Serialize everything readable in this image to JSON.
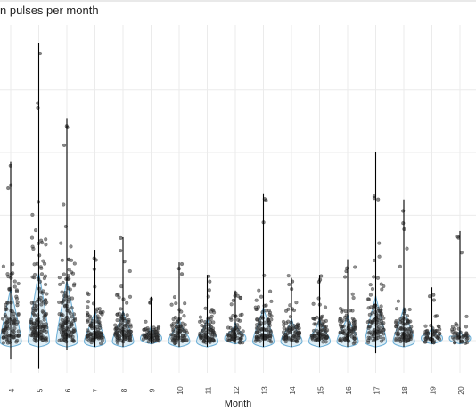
{
  "chart_data": {
    "type": "scatter",
    "subtype": "jittered strip plot with violin outlines and range lines",
    "title": "n pulses per month",
    "xlabel": "Month",
    "ylabel": "",
    "categories": [
      "4",
      "5",
      "6",
      "7",
      "8",
      "9",
      "10",
      "11",
      "12",
      "13",
      "14",
      "15",
      "16",
      "17",
      "18",
      "19",
      "20"
    ],
    "ylim": [
      0,
      100
    ],
    "grid": true,
    "point_color": "#333333",
    "violin_color": "#6baed6",
    "groups": [
      {
        "month": "4",
        "min": -6,
        "max": 57,
        "median": 4,
        "n": 95,
        "spread": 14
      },
      {
        "month": "5",
        "min": -9,
        "max": 95,
        "median": 6,
        "n": 140,
        "spread": 18
      },
      {
        "month": "6",
        "min": -3,
        "max": 71,
        "median": 5,
        "n": 120,
        "spread": 16
      },
      {
        "month": "7",
        "min": -2,
        "max": 29,
        "median": 3,
        "n": 90,
        "spread": 8
      },
      {
        "month": "8",
        "min": -2,
        "max": 33,
        "median": 3,
        "n": 95,
        "spread": 8
      },
      {
        "month": "9",
        "min": -1,
        "max": 14,
        "median": 2,
        "n": 60,
        "spread": 4
      },
      {
        "month": "10",
        "min": -2,
        "max": 25,
        "median": 3,
        "n": 70,
        "spread": 6
      },
      {
        "month": "11",
        "min": -2,
        "max": 21,
        "median": 3,
        "n": 75,
        "spread": 6
      },
      {
        "month": "12",
        "min": -1,
        "max": 16,
        "median": 2,
        "n": 65,
        "spread": 5
      },
      {
        "month": "13",
        "min": -2,
        "max": 47,
        "median": 3,
        "n": 90,
        "spread": 9
      },
      {
        "month": "14",
        "min": -2,
        "max": 20,
        "median": 3,
        "n": 75,
        "spread": 6
      },
      {
        "month": "15",
        "min": -2,
        "max": 21,
        "median": 3,
        "n": 75,
        "spread": 6
      },
      {
        "month": "16",
        "min": -2,
        "max": 26,
        "median": 3,
        "n": 80,
        "spread": 7
      },
      {
        "month": "17",
        "min": -4,
        "max": 60,
        "median": 5,
        "n": 95,
        "spread": 12
      },
      {
        "month": "18",
        "min": -2,
        "max": 45,
        "median": 4,
        "n": 80,
        "spread": 9
      },
      {
        "month": "19",
        "min": -1,
        "max": 17,
        "median": 2,
        "n": 50,
        "spread": 4
      },
      {
        "month": "20",
        "min": -1,
        "max": 35,
        "median": 1,
        "n": 40,
        "spread": 3
      }
    ]
  }
}
